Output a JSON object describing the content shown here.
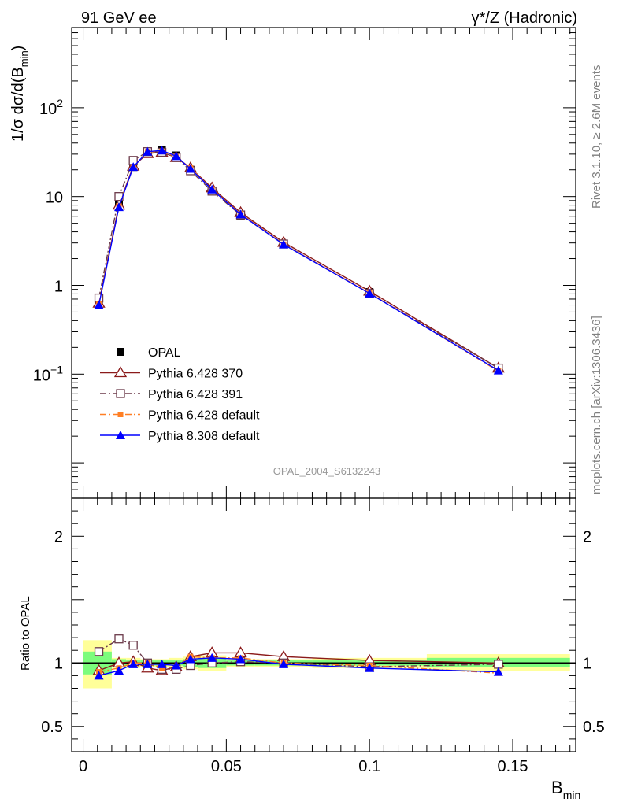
{
  "header": {
    "left_title": "91 GeV ee",
    "right_title": "γ*/Z (Hadronic)"
  },
  "side_labels": {
    "top": "Rivet 3.1.10, ≥ 2.6M events",
    "bottom": "mcplots.cern.ch [arXiv:1306.3436]"
  },
  "watermark": "OPAL_2004_S6132243",
  "colors": {
    "opal": "#000000",
    "p370": "#8b1a1a",
    "p391": "#6b3a4a",
    "p6def": "#ff7f24",
    "p8def": "#0000ff",
    "band_inner": "#7cfc7c",
    "band_outer": "#ffff99"
  },
  "chart_data": [
    {
      "type": "line",
      "panel": "main",
      "ylabel": "1/σ dσ/d(B",
      "ylabel_sub": "min",
      "ylabel_close": ")",
      "yscale": "log",
      "xlim": [
        -0.004,
        0.172
      ],
      "ylim": [
        0.004,
        800
      ],
      "ytick_labels": [
        {
          "v": 0.1,
          "base": "10",
          "exp": "−1"
        },
        {
          "v": 1,
          "base": "1",
          "exp": ""
        },
        {
          "v": 10,
          "base": "10",
          "exp": ""
        },
        {
          "v": 100,
          "base": "10",
          "exp": "2"
        }
      ],
      "x": [
        0.0055,
        0.0125,
        0.0175,
        0.0225,
        0.0275,
        0.0325,
        0.0375,
        0.045,
        0.055,
        0.07,
        0.1,
        0.145
      ],
      "series": [
        {
          "name": "OPAL",
          "key": "opal",
          "marker": "filled-square",
          "line": "none",
          "values": [
            0.66,
            8.1,
            21.5,
            32.0,
            33.5,
            29.0,
            20.0,
            11.5,
            6.1,
            2.9,
            0.84,
            0.118
          ]
        },
        {
          "name": "Pythia 6.428 370",
          "key": "p370",
          "marker": "open-triangle",
          "line": "solid",
          "values": [
            0.63,
            8.0,
            22.0,
            30.5,
            31.5,
            27.5,
            21.0,
            12.5,
            6.6,
            3.05,
            0.86,
            0.117
          ]
        },
        {
          "name": "Pythia 6.428 391",
          "key": "p391",
          "marker": "open-square",
          "line": "dashdot",
          "values": [
            0.72,
            10.0,
            25.5,
            32.0,
            31.5,
            27.5,
            19.5,
            11.5,
            6.2,
            2.92,
            0.81,
            0.117
          ]
        },
        {
          "name": "Pythia 6.428 default",
          "key": "p6def",
          "marker": "filled-small-square",
          "line": "dashdot",
          "values": [
            0.62,
            7.8,
            21.5,
            32.0,
            32.0,
            28.0,
            21.0,
            12.0,
            6.4,
            2.9,
            0.82,
            0.108
          ]
        },
        {
          "name": "Pythia 8.308 default",
          "key": "p8def",
          "marker": "filled-triangle",
          "line": "solid",
          "values": [
            0.6,
            7.6,
            21.5,
            32.0,
            33.0,
            28.5,
            20.5,
            12.0,
            6.3,
            2.88,
            0.81,
            0.11
          ]
        }
      ],
      "legend_placement": "lower-left"
    },
    {
      "type": "line",
      "panel": "ratio",
      "ylabel": "Ratio to OPAL",
      "xlabel": "B",
      "xlabel_sub": "min",
      "xlim": [
        -0.004,
        0.172
      ],
      "ylim": [
        0.3,
        2.3
      ],
      "ytick_labels": [
        {
          "v": 0.5,
          "label": "0.5"
        },
        {
          "v": 1,
          "label": "1"
        },
        {
          "v": 2,
          "label": "2"
        }
      ],
      "xtick_labels": [
        {
          "v": 0,
          "label": "0"
        },
        {
          "v": 0.05,
          "label": "0.05"
        },
        {
          "v": 0.1,
          "label": "0.1"
        },
        {
          "v": 0.15,
          "label": "0.15"
        }
      ],
      "bands": [
        {
          "x0": 0.0,
          "x1": 0.01,
          "inner": [
            0.91,
            1.09
          ],
          "outer": [
            0.8,
            1.18
          ]
        },
        {
          "x0": 0.01,
          "x1": 0.015,
          "inner": [
            0.97,
            1.03
          ],
          "outer": [
            0.96,
            1.04
          ]
        },
        {
          "x0": 0.015,
          "x1": 0.02,
          "inner": [
            0.98,
            1.02
          ],
          "outer": [
            0.96,
            1.04
          ]
        },
        {
          "x0": 0.02,
          "x1": 0.025,
          "inner": [
            0.98,
            1.02
          ],
          "outer": [
            0.97,
            1.03
          ]
        },
        {
          "x0": 0.025,
          "x1": 0.03,
          "inner": [
            0.98,
            1.02
          ],
          "outer": [
            0.97,
            1.03
          ]
        },
        {
          "x0": 0.03,
          "x1": 0.035,
          "inner": [
            0.98,
            1.02
          ],
          "outer": [
            0.96,
            1.04
          ]
        },
        {
          "x0": 0.035,
          "x1": 0.04,
          "inner": [
            0.97,
            1.03
          ],
          "outer": [
            0.95,
            1.05
          ]
        },
        {
          "x0": 0.04,
          "x1": 0.05,
          "inner": [
            0.96,
            1.04
          ],
          "outer": [
            0.94,
            1.06
          ]
        },
        {
          "x0": 0.05,
          "x1": 0.06,
          "inner": [
            0.98,
            1.02
          ],
          "outer": [
            0.97,
            1.03
          ]
        },
        {
          "x0": 0.06,
          "x1": 0.08,
          "inner": [
            0.98,
            1.02
          ],
          "outer": [
            0.97,
            1.03
          ]
        },
        {
          "x0": 0.08,
          "x1": 0.12,
          "inner": [
            0.98,
            1.02
          ],
          "outer": [
            0.96,
            1.04
          ]
        },
        {
          "x0": 0.12,
          "x1": 0.17,
          "inner": [
            0.97,
            1.04
          ],
          "outer": [
            0.94,
            1.07
          ]
        }
      ],
      "x": [
        0.0055,
        0.0125,
        0.0175,
        0.0225,
        0.0275,
        0.0325,
        0.0375,
        0.045,
        0.055,
        0.07,
        0.1,
        0.145
      ],
      "series": [
        {
          "name": "Pythia 6.428 370",
          "key": "p370",
          "marker": "open-triangle",
          "line": "solid",
          "values": [
            0.94,
            1.0,
            1.01,
            0.96,
            0.94,
            0.97,
            1.05,
            1.08,
            1.08,
            1.05,
            1.02,
            1.0
          ]
        },
        {
          "name": "Pythia 6.428 391",
          "key": "p391",
          "marker": "open-square",
          "line": "dashdot",
          "values": [
            1.09,
            1.19,
            1.14,
            1.0,
            0.95,
            0.95,
            0.98,
            1.0,
            1.01,
            1.0,
            0.97,
            0.99
          ]
        },
        {
          "name": "Pythia 6.428 default",
          "key": "p6def",
          "marker": "filled-small-square",
          "line": "dashdot",
          "values": [
            0.93,
            0.96,
            1.0,
            1.0,
            0.96,
            0.97,
            1.05,
            1.04,
            1.04,
            1.0,
            0.98,
            0.92
          ]
        },
        {
          "name": "Pythia 8.308 default",
          "key": "p8def",
          "marker": "filled-triangle",
          "line": "solid",
          "values": [
            0.9,
            0.94,
            0.99,
            0.99,
            0.99,
            0.98,
            1.03,
            1.04,
            1.03,
            0.99,
            0.96,
            0.93
          ]
        }
      ]
    }
  ]
}
